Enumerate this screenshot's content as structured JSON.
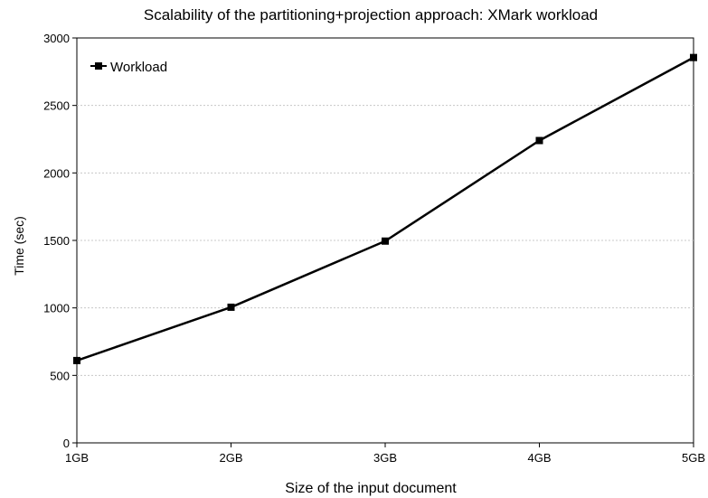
{
  "chart_data": {
    "type": "line",
    "title": "Scalability of the partitioning+projection approach: XMark workload",
    "xlabel": "Size of the input document",
    "ylabel": "Time (sec)",
    "categories": [
      "1GB",
      "2GB",
      "3GB",
      "4GB",
      "5GB"
    ],
    "ylim": [
      0,
      3000
    ],
    "yticks": [
      0,
      500,
      1000,
      1500,
      2000,
      2500,
      3000
    ],
    "grid": true,
    "legend_position": "top-left",
    "series": [
      {
        "name": "Workload",
        "values": [
          610,
          1005,
          1495,
          2240,
          2855
        ],
        "color": "#000000",
        "marker": "square"
      }
    ]
  }
}
